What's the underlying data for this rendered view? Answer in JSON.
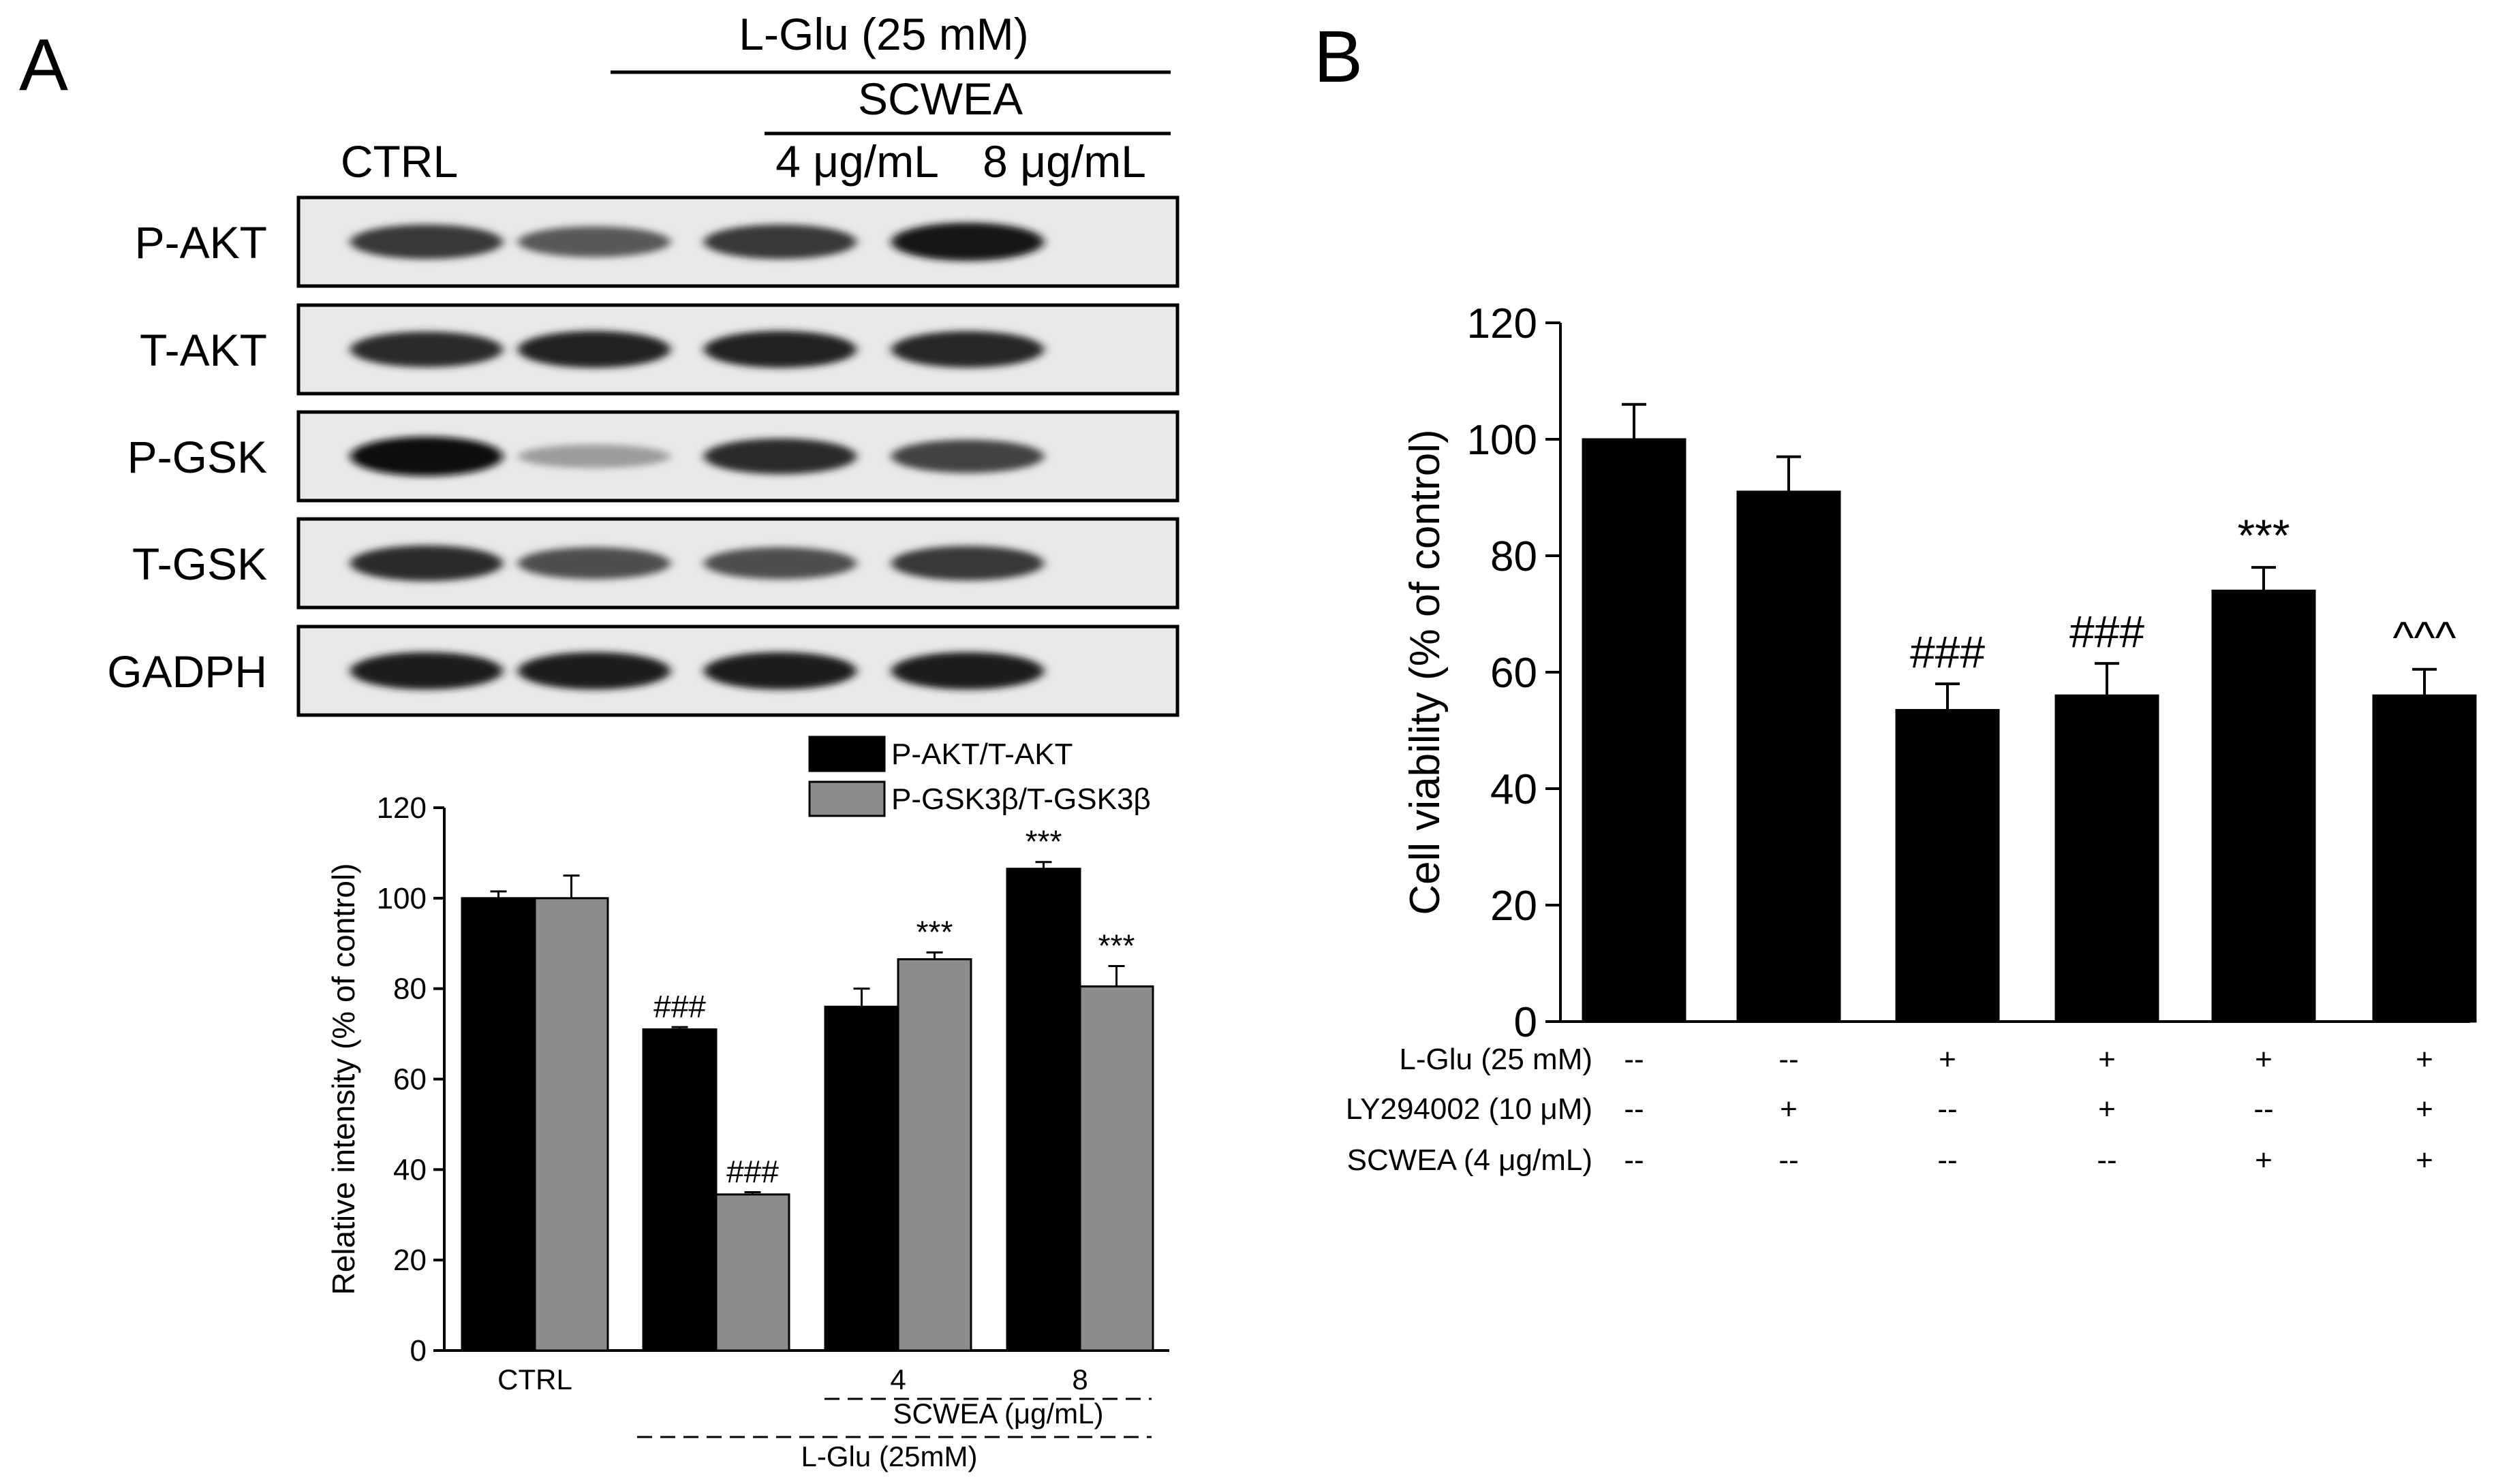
{
  "panel_labels": {
    "a": "A",
    "b": "B"
  },
  "blot": {
    "header": {
      "treatment": "L-Glu (25 mM)",
      "extract": "SCWEA",
      "ctrl": "CTRL",
      "dose_low": "4 μg/mL",
      "dose_high": "8 μg/mL"
    },
    "lanes": 4,
    "rows": [
      {
        "label": "P-AKT",
        "band_intensity": [
          0.8,
          0.65,
          0.8,
          0.95
        ]
      },
      {
        "label": "T-AKT",
        "band_intensity": [
          0.85,
          0.9,
          0.9,
          0.88
        ]
      },
      {
        "label": "P-GSK",
        "band_intensity": [
          1.0,
          0.35,
          0.85,
          0.75
        ]
      },
      {
        "label": "T-GSK",
        "band_intensity": [
          0.85,
          0.7,
          0.7,
          0.8
        ]
      },
      {
        "label": "GADPH",
        "band_intensity": [
          0.92,
          0.92,
          0.92,
          0.92
        ]
      }
    ]
  },
  "chart_data": [
    {
      "type": "bar",
      "ylabel": "Relative intensity (% of control)",
      "ylim": [
        0,
        120
      ],
      "yticks": [
        0,
        20,
        40,
        60,
        80,
        100,
        120
      ],
      "legend_position": "top-right",
      "groups": [
        {
          "label": "CTRL"
        },
        {
          "label": ""
        },
        {
          "label": "4"
        },
        {
          "label": "8"
        }
      ],
      "series": [
        {
          "name": "P-AKT/T-AKT",
          "color": "#000000",
          "values": [
            100,
            71,
            76,
            106.5
          ],
          "errors": [
            1.5,
            0.5,
            4,
            1.5
          ],
          "annotations": [
            "",
            "###",
            "",
            "***"
          ]
        },
        {
          "name": "P-GSK3β/T-GSK3β",
          "color": "#8c8c8c",
          "values": [
            100,
            34.5,
            86.5,
            80.5
          ],
          "errors": [
            5,
            0.5,
            1.5,
            4.5
          ],
          "annotations": [
            "",
            "###",
            "***",
            "***"
          ]
        }
      ],
      "bracket_labels": {
        "inner": "SCWEA (μg/mL)",
        "outer": "L-Glu (25mM)"
      }
    },
    {
      "type": "bar",
      "ylabel": "Cell viability (% of control)",
      "ylim": [
        0,
        120
      ],
      "yticks": [
        0,
        20,
        40,
        60,
        80,
        100,
        120
      ],
      "color": "#000000",
      "values": [
        100,
        91,
        53.5,
        56,
        74,
        56
      ],
      "errors": [
        6,
        6,
        4.5,
        5.5,
        4,
        4.5
      ],
      "annotations": [
        "",
        "",
        "###",
        "###",
        "***",
        "^^^"
      ],
      "condition_table": [
        {
          "label": "L-Glu (25 mM)",
          "cells": [
            "--",
            "--",
            "+",
            "+",
            "+",
            "+"
          ]
        },
        {
          "label": "LY294002 (10 μM)",
          "cells": [
            "--",
            "+",
            "--",
            "+",
            "--",
            "+"
          ]
        },
        {
          "label": "SCWEA (4 μg/mL)",
          "cells": [
            "--",
            "--",
            "--",
            "--",
            "+",
            "+"
          ]
        }
      ]
    }
  ]
}
